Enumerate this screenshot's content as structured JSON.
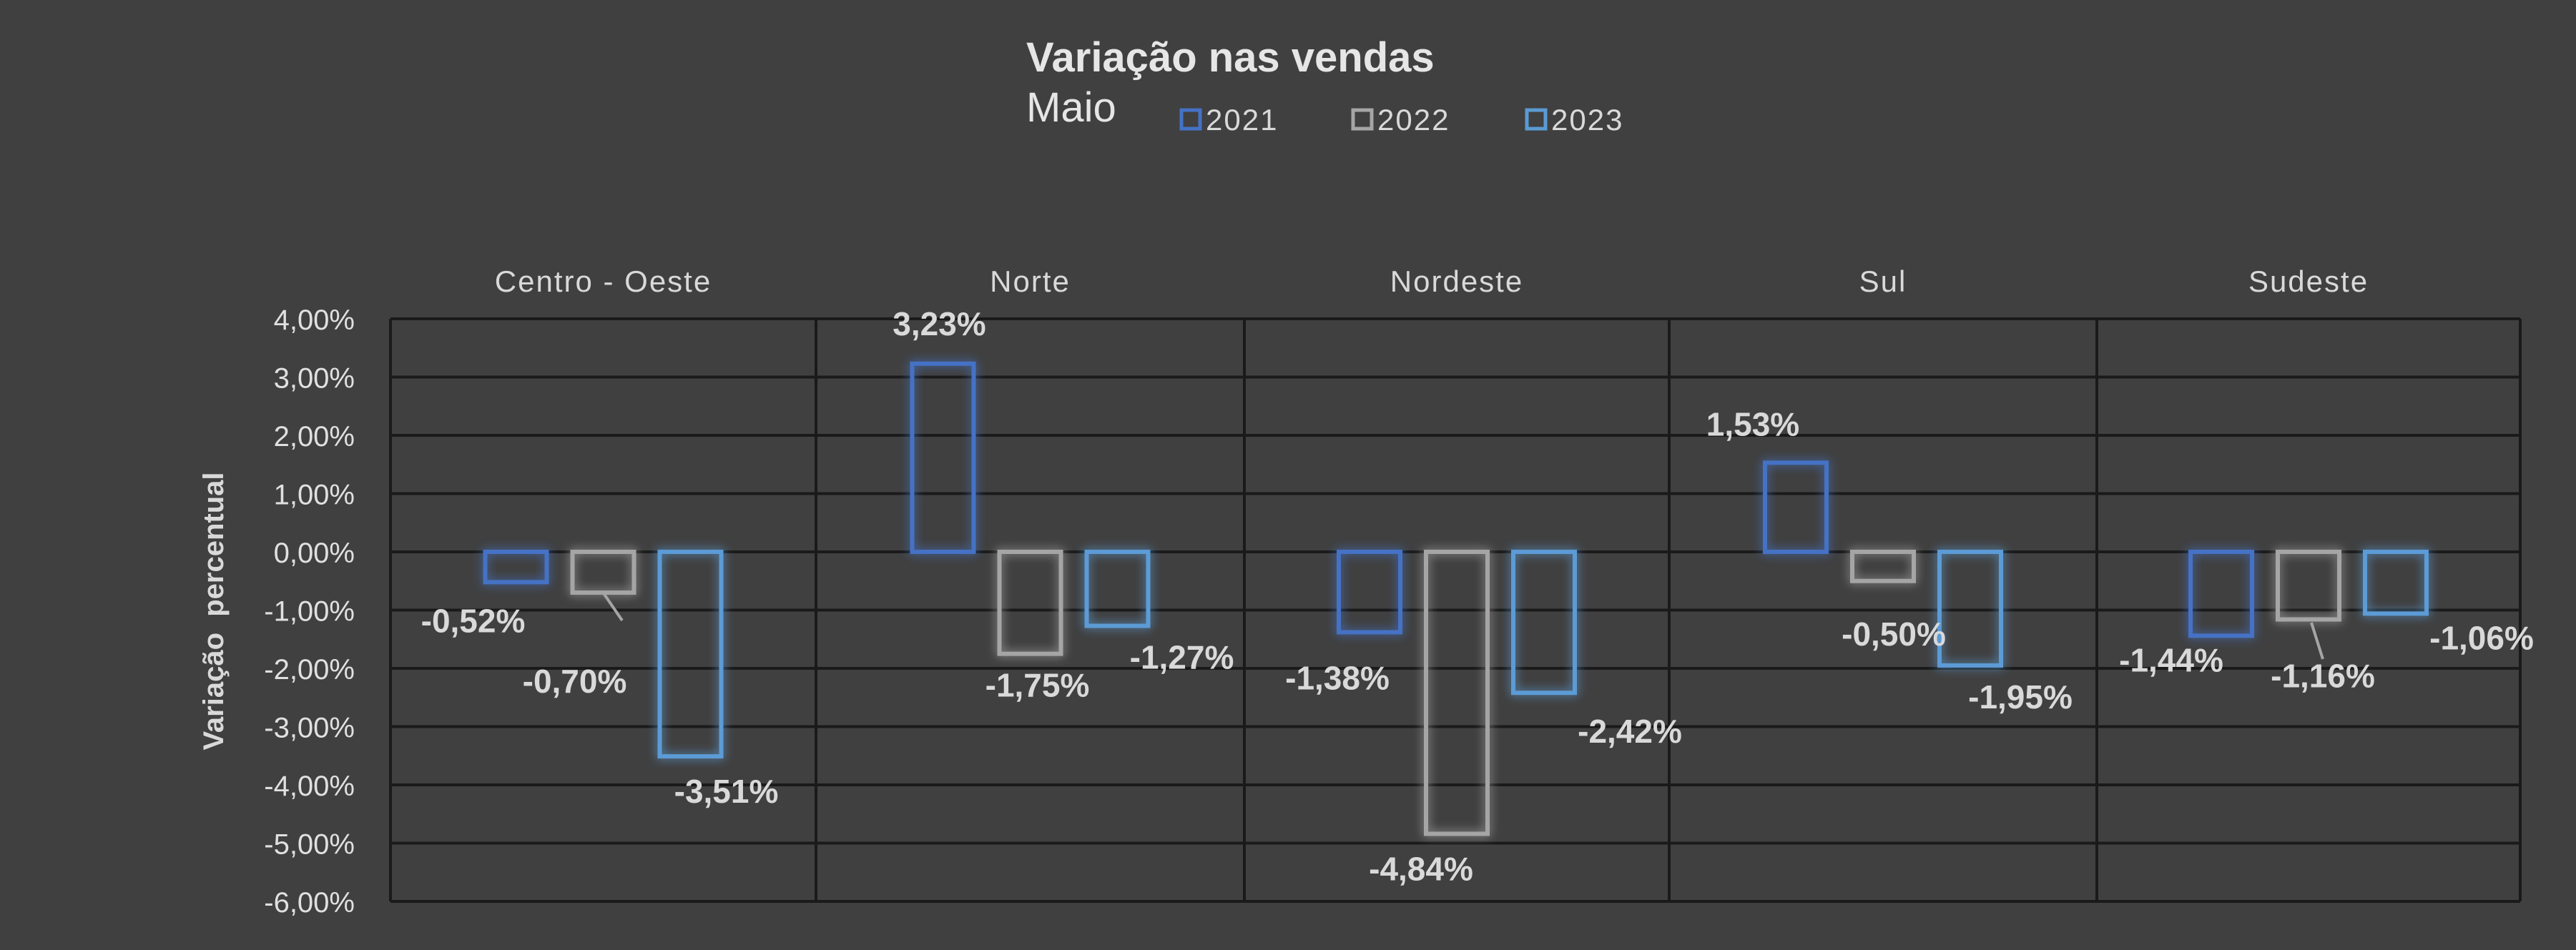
{
  "chart_data": {
    "type": "bar",
    "title": "Variação nas vendas",
    "subtitle": "Maio",
    "ylabel": "Variação  percentual",
    "xlabel": "",
    "ylim": [
      -6,
      4
    ],
    "y_ticks": [
      4,
      3,
      2,
      1,
      0,
      -1,
      -2,
      -3,
      -4,
      -5,
      -6
    ],
    "y_tick_labels": [
      "4,00%",
      "3,00%",
      "2,00%",
      "1,00%",
      "0,00%",
      "-1,00%",
      "-2,00%",
      "-3,00%",
      "-4,00%",
      "-5,00%",
      "-6,00%"
    ],
    "grid": true,
    "legend_position": "top-center",
    "categories": [
      "Centro - Oeste",
      "Norte",
      "Nordeste",
      "Sul",
      "Sudeste"
    ],
    "series": [
      {
        "name": "2021",
        "color": "#4472C4",
        "values": [
          -0.52,
          3.23,
          -1.38,
          1.53,
          -1.44
        ],
        "labels": [
          "-0,52%",
          "3,23%",
          "-1,38%",
          "1,53%",
          "-1,44%"
        ]
      },
      {
        "name": "2022",
        "color": "#A5A5A5",
        "values": [
          -0.7,
          -1.75,
          -4.84,
          -0.5,
          -1.16
        ],
        "labels": [
          "-0,70%",
          "-1,75%",
          "-4,84%",
          "-0,50%",
          "-1,16%"
        ]
      },
      {
        "name": "2023",
        "color": "#5B9BD5",
        "values": [
          -3.51,
          -1.27,
          -2.42,
          -1.95,
          -1.06
        ],
        "labels": [
          "-3,51%",
          "-1,27%",
          "-2,42%",
          "-1,95%",
          "-1,06%"
        ]
      }
    ]
  }
}
